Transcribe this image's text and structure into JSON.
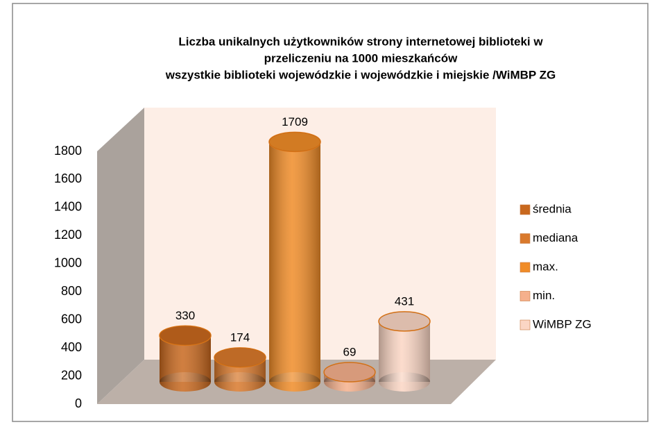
{
  "chart_data": {
    "type": "bar",
    "title": [
      "Liczba unikalnych użytkowników strony internetowej biblioteki w",
      "przeliczeniu na 1000 mieszkańców",
      "wszystkie biblioteki wojewódzkie i wojewódzkie i miejskie  /WiMBP ZG"
    ],
    "categories": [
      null
    ],
    "series": [
      {
        "name": "średnia",
        "color": "#c8681e",
        "values": [
          330
        ]
      },
      {
        "name": "mediana",
        "color": "#d9792c",
        "values": [
          174
        ]
      },
      {
        "name": "max.",
        "color": "#f08c28",
        "values": [
          1709
        ]
      },
      {
        "name": "min.",
        "color": "#f5b08c",
        "values": [
          69
        ]
      },
      {
        "name": "WiMBP ZG",
        "color": "#fbd6c4",
        "values": [
          431
        ]
      }
    ],
    "ylim": [
      0,
      1800
    ],
    "yticks": [
      0,
      200,
      400,
      600,
      800,
      1000,
      1200,
      1400,
      1600,
      1800
    ],
    "legend": "right"
  }
}
